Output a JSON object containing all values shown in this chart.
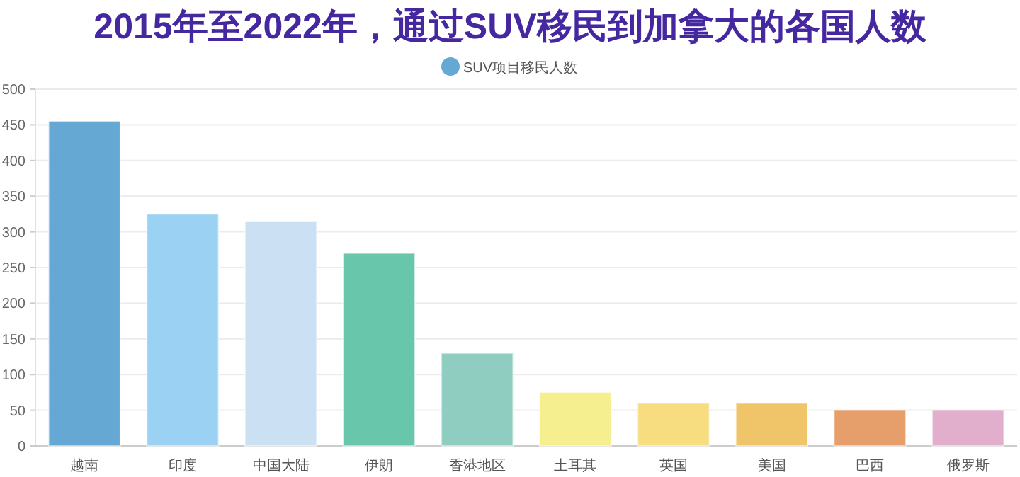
{
  "chart_data": {
    "type": "bar",
    "title": "2015年至2022年，通过SUV移民到加拿大的各国人数",
    "categories": [
      "越南",
      "印度",
      "中国大陆",
      "伊朗",
      "香港地区",
      "土耳其",
      "英国",
      "美国",
      "巴西",
      "俄罗斯"
    ],
    "series": [
      {
        "name": "SUV项目移民人数",
        "color": "#66a8d4",
        "values": [
          455,
          325,
          315,
          270,
          130,
          75,
          60,
          60,
          50,
          50
        ],
        "colors": [
          "#66a8d4",
          "#9bd1f2",
          "#cce0f4",
          "#68c6aa",
          "#90cdc1",
          "#f5ef8f",
          "#f7dd7f",
          "#f0c56a",
          "#e69f6a",
          "#e1afcb"
        ]
      }
    ],
    "ylim": [
      0,
      500
    ],
    "yticks": [
      0,
      50,
      100,
      150,
      200,
      250,
      300,
      350,
      400,
      450,
      500
    ],
    "grid": "y",
    "legend": "top"
  }
}
